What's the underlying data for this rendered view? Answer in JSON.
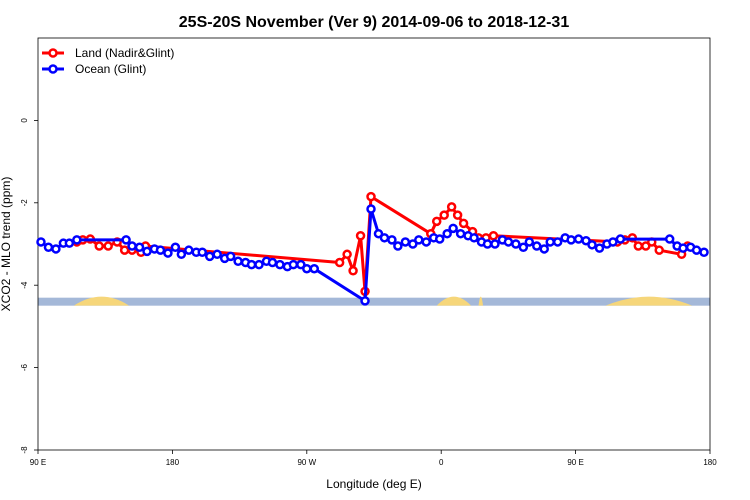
{
  "chart_data": {
    "type": "line",
    "title": "25S-20S November (Ver 9)   2014-09-06 to 2018-12-31",
    "xlabel": "Longitude (deg E)",
    "ylabel": "XCO2 - MLO trend (ppm)",
    "xlim": [
      90,
      540
    ],
    "ylim": [
      -8,
      2
    ],
    "x_ticks": [
      {
        "value": 90,
        "label": "90 E"
      },
      {
        "value": 180,
        "label": "180"
      },
      {
        "value": 270,
        "label": "90 W"
      },
      {
        "value": 360,
        "label": "0"
      },
      {
        "value": 450,
        "label": "90 E"
      },
      {
        "value": 540,
        "label": "180"
      }
    ],
    "y_ticks": [
      {
        "value": -8,
        "label": "-8"
      },
      {
        "value": -6,
        "label": "-6"
      },
      {
        "value": -4,
        "label": "-4"
      },
      {
        "value": -2,
        "label": "-2"
      },
      {
        "value": 0,
        "label": "0"
      }
    ],
    "legend_position": "top-left",
    "surface_strip": {
      "y": -4.4,
      "ocean_color": "#a4b8d8",
      "land_color": "#f6d67a",
      "land_segments": [
        [
          114,
          151
        ],
        [
          357,
          380
        ],
        [
          385,
          388
        ],
        [
          470,
          528
        ]
      ]
    },
    "series": [
      {
        "name": "Land (Nadir&Glint)",
        "color": "#ff0000",
        "points": [
          [
            116,
            -2.95
          ],
          [
            120,
            -2.9
          ],
          [
            125,
            -2.88
          ],
          [
            131,
            -3.05
          ],
          [
            137,
            -3.05
          ],
          [
            143,
            -2.95
          ],
          [
            148,
            -3.15
          ],
          [
            153,
            -3.15
          ],
          [
            159,
            -3.2
          ],
          [
            162,
            -3.05
          ],
          [
            292,
            -3.45
          ],
          [
            297,
            -3.25
          ],
          [
            301,
            -3.65
          ],
          [
            306,
            -2.8
          ],
          [
            309,
            -4.15
          ],
          [
            313,
            -1.85
          ],
          [
            353,
            -2.75
          ],
          [
            357,
            -2.45
          ],
          [
            362,
            -2.3
          ],
          [
            367,
            -2.1
          ],
          [
            371,
            -2.3
          ],
          [
            375,
            -2.5
          ],
          [
            381,
            -2.7
          ],
          [
            385,
            -2.85
          ],
          [
            390,
            -2.85
          ],
          [
            395,
            -2.8
          ],
          [
            478,
            -2.95
          ],
          [
            483,
            -2.9
          ],
          [
            488,
            -2.85
          ],
          [
            492,
            -3.05
          ],
          [
            497,
            -3.05
          ],
          [
            501,
            -2.95
          ],
          [
            506,
            -3.15
          ],
          [
            521,
            -3.25
          ],
          [
            525,
            -3.05
          ]
        ]
      },
      {
        "name": "Ocean (Glint)",
        "color": "#0000ff",
        "points": [
          [
            92,
            -2.95
          ],
          [
            97,
            -3.08
          ],
          [
            102,
            -3.12
          ],
          [
            107,
            -2.98
          ],
          [
            111,
            -2.98
          ],
          [
            116,
            -2.9
          ],
          [
            149,
            -2.9
          ],
          [
            153,
            -3.05
          ],
          [
            158,
            -3.08
          ],
          [
            163,
            -3.18
          ],
          [
            168,
            -3.12
          ],
          [
            172,
            -3.15
          ],
          [
            177,
            -3.22
          ],
          [
            182,
            -3.08
          ],
          [
            186,
            -3.25
          ],
          [
            191,
            -3.15
          ],
          [
            196,
            -3.2
          ],
          [
            200,
            -3.2
          ],
          [
            205,
            -3.3
          ],
          [
            210,
            -3.25
          ],
          [
            215,
            -3.35
          ],
          [
            219,
            -3.3
          ],
          [
            224,
            -3.42
          ],
          [
            229,
            -3.45
          ],
          [
            233,
            -3.5
          ],
          [
            238,
            -3.5
          ],
          [
            243,
            -3.42
          ],
          [
            247,
            -3.45
          ],
          [
            252,
            -3.5
          ],
          [
            257,
            -3.55
          ],
          [
            261,
            -3.5
          ],
          [
            266,
            -3.5
          ],
          [
            270,
            -3.6
          ],
          [
            275,
            -3.6
          ],
          [
            309,
            -4.38
          ],
          [
            313,
            -2.15
          ],
          [
            318,
            -2.75
          ],
          [
            322,
            -2.85
          ],
          [
            327,
            -2.9
          ],
          [
            331,
            -3.05
          ],
          [
            336,
            -2.95
          ],
          [
            341,
            -3.0
          ],
          [
            345,
            -2.9
          ],
          [
            350,
            -2.95
          ],
          [
            355,
            -2.85
          ],
          [
            359,
            -2.88
          ],
          [
            364,
            -2.75
          ],
          [
            368,
            -2.62
          ],
          [
            373,
            -2.75
          ],
          [
            378,
            -2.8
          ],
          [
            382,
            -2.85
          ],
          [
            387,
            -2.95
          ],
          [
            391,
            -3.0
          ],
          [
            396,
            -3.0
          ],
          [
            401,
            -2.9
          ],
          [
            405,
            -2.95
          ],
          [
            410,
            -3.0
          ],
          [
            415,
            -3.08
          ],
          [
            419,
            -2.95
          ],
          [
            424,
            -3.05
          ],
          [
            429,
            -3.12
          ],
          [
            433,
            -2.95
          ],
          [
            438,
            -2.95
          ],
          [
            443,
            -2.85
          ],
          [
            447,
            -2.9
          ],
          [
            452,
            -2.88
          ],
          [
            457,
            -2.92
          ],
          [
            461,
            -3.02
          ],
          [
            466,
            -3.1
          ],
          [
            471,
            -3.0
          ],
          [
            475,
            -2.95
          ],
          [
            480,
            -2.88
          ],
          [
            513,
            -2.88
          ],
          [
            518,
            -3.05
          ],
          [
            522,
            -3.1
          ],
          [
            527,
            -3.08
          ],
          [
            531,
            -3.15
          ],
          [
            536,
            -3.2
          ]
        ]
      }
    ]
  }
}
